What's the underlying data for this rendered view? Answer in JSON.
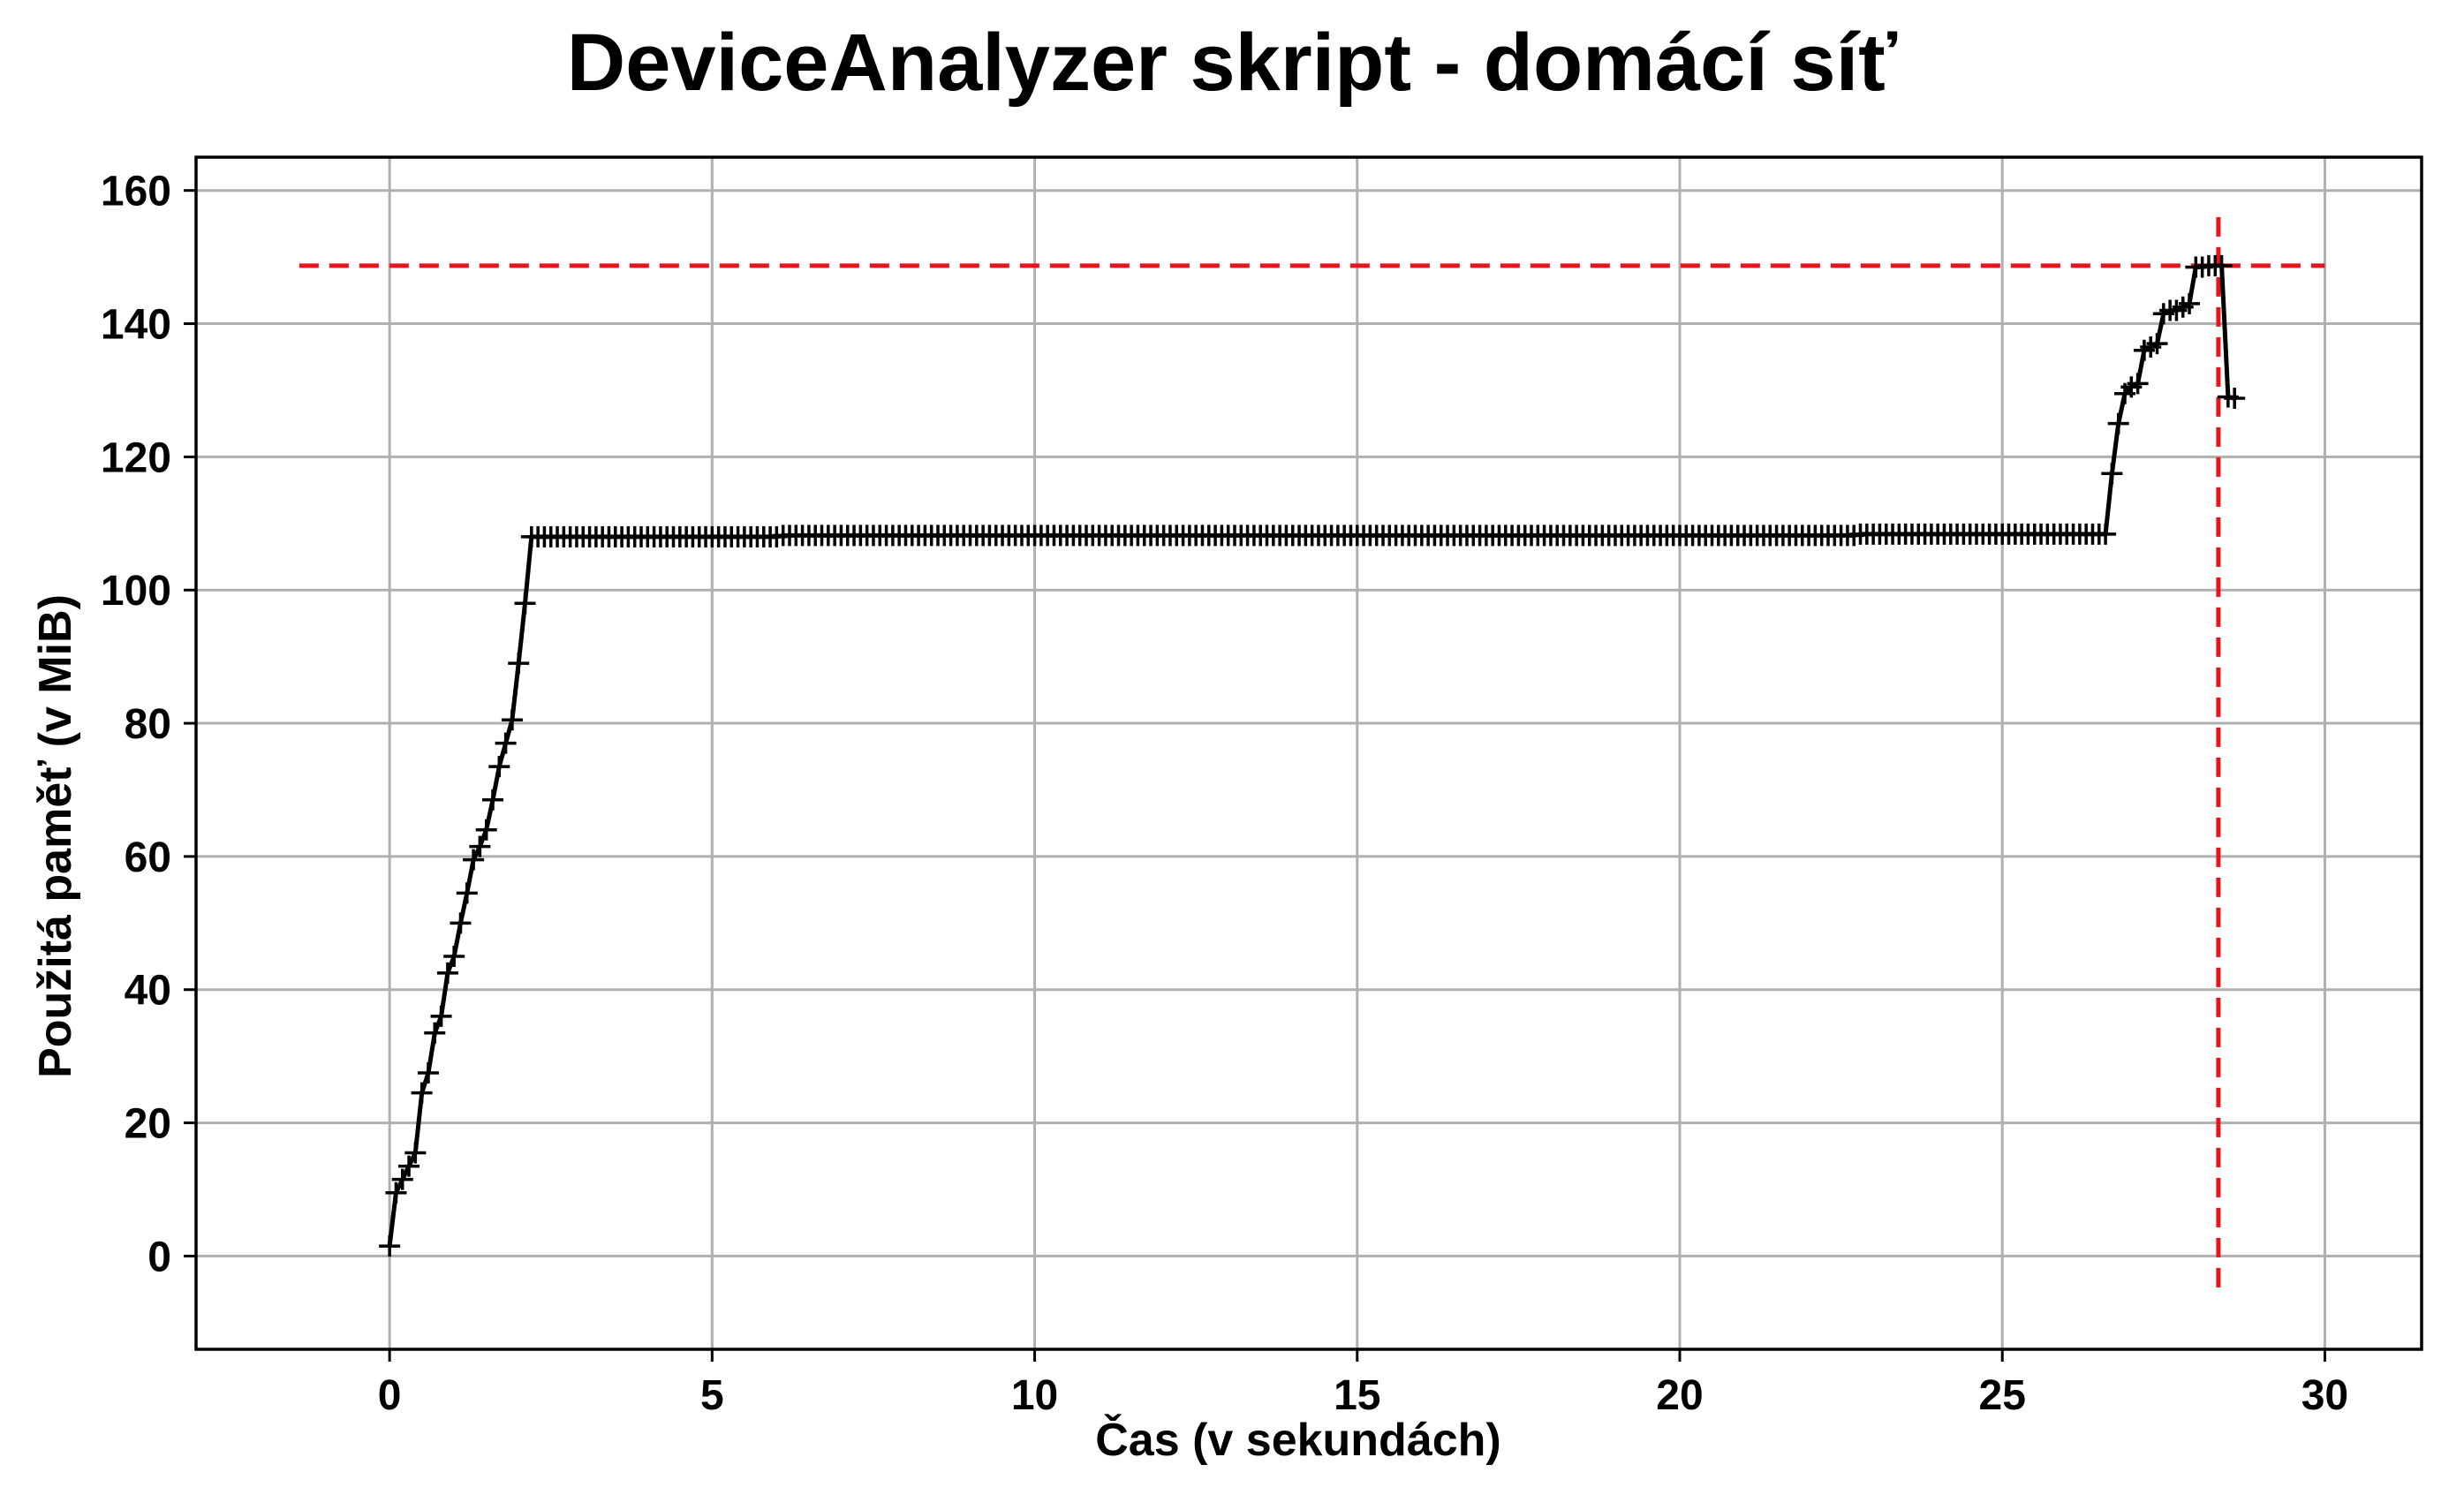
{
  "chart_data": {
    "type": "line",
    "title": "DeviceAnalyzer skript - domácí síť",
    "xlabel": "Čas (v sekundách)",
    "ylabel": "Použitá paměť (v MiB)",
    "xlim": [
      -3,
      31.5
    ],
    "ylim": [
      -14,
      165
    ],
    "xticks": [
      0,
      5,
      10,
      15,
      20,
      25,
      30
    ],
    "yticks": [
      0,
      20,
      40,
      60,
      80,
      100,
      120,
      140,
      160
    ],
    "grid": true,
    "marker": "+",
    "colors": {
      "series": "#000000",
      "reference": "#e8141b",
      "grid": "#b0b0b0"
    },
    "segments": [
      {
        "x": [
          0.0,
          0.1,
          0.2,
          0.3,
          0.4,
          0.5,
          0.6,
          0.7,
          0.8,
          0.9,
          1.0,
          1.1,
          1.2,
          1.3,
          1.4,
          1.5,
          1.6,
          1.7,
          1.8,
          1.9,
          2.0,
          2.1
        ],
        "y": [
          1.5,
          9.5,
          11.5,
          13.5,
          15.5,
          24.5,
          27.5,
          33.5,
          36.0,
          42.5,
          45.0,
          50.0,
          54.5,
          59.5,
          61.5,
          64.0,
          68.5,
          73.5,
          77.0,
          80.5,
          89.0,
          98.0
        ]
      },
      {
        "x_start": 2.2,
        "x_end": 6.0,
        "step": 0.1,
        "y": 108.0
      },
      {
        "x_start": 6.1,
        "x_end": 22.7,
        "step": 0.1,
        "y": 108.2
      },
      {
        "x_start": 22.8,
        "x_end": 26.6,
        "step": 0.1,
        "y": 108.4
      },
      {
        "x": [
          26.7,
          26.8,
          26.9,
          27.0,
          27.1,
          27.2,
          27.3,
          27.4,
          27.5,
          27.6,
          27.7,
          27.8,
          27.9,
          28.0,
          28.1,
          28.2,
          28.3,
          28.4,
          28.5,
          28.6
        ],
        "y": [
          117.5,
          125.0,
          129.5,
          130.5,
          131.0,
          136.0,
          136.5,
          137.0,
          141.5,
          142.0,
          142.0,
          142.5,
          143.0,
          148.5,
          148.5,
          148.7,
          148.7,
          148.7,
          129.0,
          128.8
        ]
      }
    ],
    "reference_lines": [
      {
        "orientation": "horizontal",
        "y": 148.7,
        "x_from": -1.4,
        "x_to": 30.0
      },
      {
        "orientation": "vertical",
        "x": 28.35,
        "y_from": -6,
        "y_to": 156
      }
    ]
  }
}
